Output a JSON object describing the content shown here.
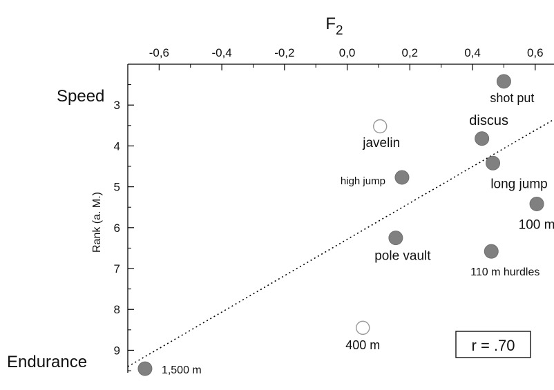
{
  "chart_data": {
    "type": "scatter",
    "title": "F2",
    "title_main": "F",
    "title_sub": "2",
    "xlabel": "F2",
    "ylabel": "Rank (a. M.)",
    "xlim": [
      -0.7,
      0.66
    ],
    "ylim": [
      9.55,
      2.0
    ],
    "x_ticks": [
      "-0,6",
      "-0,4",
      "-0,2",
      "0,0",
      "0,2",
      "0,4",
      "0,6"
    ],
    "x_tick_values": [
      -0.6,
      -0.4,
      -0.2,
      0.0,
      0.2,
      0.4,
      0.6
    ],
    "y_ticks": [
      "3",
      "4",
      "5",
      "6",
      "7",
      "8",
      "9"
    ],
    "y_tick_values": [
      3,
      4,
      5,
      6,
      7,
      8,
      9
    ],
    "top_label": "Speed",
    "bottom_label": "Endurance",
    "annotation": "r = .70",
    "grid": false,
    "points": [
      {
        "label": "shot put",
        "x": 0.5,
        "y": 2.42,
        "filled": true
      },
      {
        "label": "discus",
        "x": 0.43,
        "y": 3.82,
        "filled": true
      },
      {
        "label": "javelin",
        "x": 0.105,
        "y": 3.52,
        "filled": false
      },
      {
        "label": "high jump",
        "x": 0.175,
        "y": 4.77,
        "filled": true
      },
      {
        "label": "long jump",
        "x": 0.465,
        "y": 4.42,
        "filled": true
      },
      {
        "label": "100 m",
        "x": 0.605,
        "y": 5.42,
        "filled": true
      },
      {
        "label": "pole vault",
        "x": 0.155,
        "y": 6.25,
        "filled": true
      },
      {
        "label": "110 m hurdles",
        "x": 0.46,
        "y": 6.58,
        "filled": true
      },
      {
        "label": "400 m",
        "x": 0.05,
        "y": 8.45,
        "filled": false
      },
      {
        "label": "1,500 m",
        "x": -0.645,
        "y": 9.45,
        "filled": true
      }
    ],
    "trendline": {
      "style": "dotted",
      "from": {
        "x": -0.7,
        "y": 9.4
      },
      "to": {
        "x": 0.66,
        "y": 3.35
      }
    },
    "colors": {
      "filled_marker": "#808080",
      "open_marker_stroke": "#999999",
      "axis": "#000000"
    }
  }
}
